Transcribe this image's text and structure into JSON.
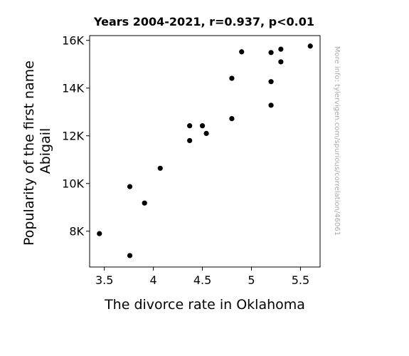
{
  "chart_data": {
    "type": "scatter",
    "title": "Years 2004-2021, r=0.937, p<0.01",
    "xlabel": "The divorce rate in Oklahoma",
    "ylabel_lines": [
      "Popularity of the first name",
      "Abigail"
    ],
    "watermark": "More info: tylervigen.com/spurious/correlation/46061",
    "xlim": [
      3.35,
      5.7
    ],
    "ylim": [
      6500,
      16200
    ],
    "xticks": [
      3.5,
      4,
      4.5,
      5,
      5.5
    ],
    "xtick_labels": [
      "3.5",
      "4",
      "4.5",
      "5",
      "5.5"
    ],
    "yticks": [
      8000,
      10000,
      12000,
      14000,
      16000
    ],
    "ytick_labels": [
      "8K",
      "10K",
      "12K",
      "14K",
      "16K"
    ],
    "grid": false,
    "marker_color": "#000000",
    "points": [
      {
        "x": 3.45,
        "y": 7900
      },
      {
        "x": 3.76,
        "y": 9870
      },
      {
        "x": 3.76,
        "y": 6980
      },
      {
        "x": 3.91,
        "y": 9180
      },
      {
        "x": 4.07,
        "y": 10640
      },
      {
        "x": 4.37,
        "y": 12420
      },
      {
        "x": 4.37,
        "y": 11800
      },
      {
        "x": 4.5,
        "y": 12420
      },
      {
        "x": 4.54,
        "y": 12100
      },
      {
        "x": 4.8,
        "y": 14410
      },
      {
        "x": 4.8,
        "y": 12720
      },
      {
        "x": 4.9,
        "y": 15520
      },
      {
        "x": 5.2,
        "y": 15490
      },
      {
        "x": 5.2,
        "y": 14270
      },
      {
        "x": 5.2,
        "y": 13280
      },
      {
        "x": 5.3,
        "y": 15630
      },
      {
        "x": 5.3,
        "y": 15100
      },
      {
        "x": 5.6,
        "y": 15760
      }
    ]
  }
}
